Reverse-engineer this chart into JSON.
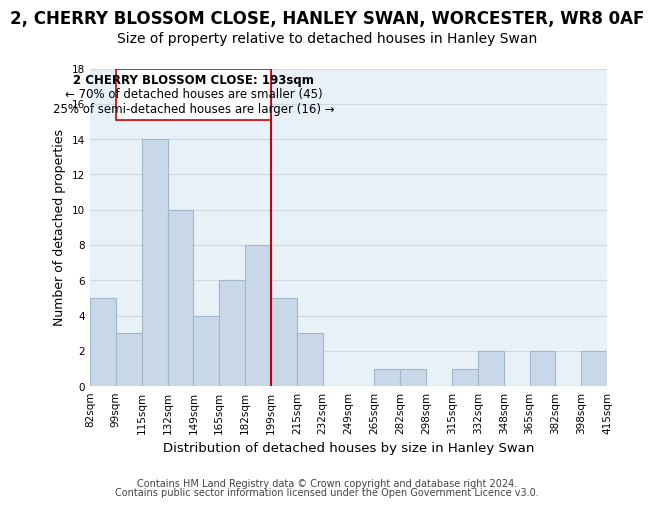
{
  "title": "2, CHERRY BLOSSOM CLOSE, HANLEY SWAN, WORCESTER, WR8 0AF",
  "subtitle": "Size of property relative to detached houses in Hanley Swan",
  "xlabel": "Distribution of detached houses by size in Hanley Swan",
  "ylabel": "Number of detached properties",
  "footer_line1": "Contains HM Land Registry data © Crown copyright and database right 2024.",
  "footer_line2": "Contains public sector information licensed under the Open Government Licence v3.0.",
  "bin_labels": [
    "82sqm",
    "99sqm",
    "115sqm",
    "132sqm",
    "149sqm",
    "165sqm",
    "182sqm",
    "199sqm",
    "215sqm",
    "232sqm",
    "249sqm",
    "265sqm",
    "282sqm",
    "298sqm",
    "315sqm",
    "332sqm",
    "348sqm",
    "365sqm",
    "382sqm",
    "398sqm",
    "415sqm"
  ],
  "bar_heights": [
    5,
    3,
    14,
    10,
    4,
    6,
    8,
    5,
    3,
    0,
    0,
    1,
    1,
    0,
    1,
    2,
    0,
    2,
    0,
    2
  ],
  "bar_color": "#c8d8e8",
  "bar_edge_color": "#a0b8cc",
  "bg_color": "#e8f0f8",
  "grid_color": "#d0d8e0",
  "vline_position": 7.0,
  "vline_color": "#cc0000",
  "annotation_title": "2 CHERRY BLOSSOM CLOSE: 193sqm",
  "annotation_line1": "← 70% of detached houses are smaller (45)",
  "annotation_line2": "25% of semi-detached houses are larger (16) →",
  "annotation_box_color": "#ffffff",
  "annotation_box_edge_color": "#cc0000",
  "ylim": [
    0,
    18
  ],
  "yticks": [
    0,
    2,
    4,
    6,
    8,
    10,
    12,
    14,
    16,
    18
  ],
  "title_fontsize": 12,
  "subtitle_fontsize": 10,
  "xlabel_fontsize": 9.5,
  "ylabel_fontsize": 9,
  "tick_fontsize": 7.5,
  "annotation_fontsize": 8.5,
  "footer_fontsize": 7
}
